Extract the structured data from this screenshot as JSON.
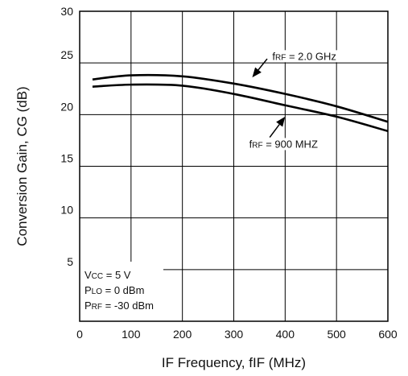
{
  "chart_data": {
    "type": "line",
    "title": "",
    "xlabel": "IF Frequency, fIF (MHz)",
    "ylabel": "Conversion Gain, CG (dB)",
    "xlim": [
      0,
      600
    ],
    "ylim": [
      0,
      30
    ],
    "xticks": [
      0,
      100,
      200,
      300,
      400,
      500,
      600
    ],
    "yticks": [
      5,
      10,
      15,
      20,
      25,
      30
    ],
    "grid": true,
    "series": [
      {
        "name": "fRF = 2.0 GHz",
        "x": [
          25,
          100,
          200,
          300,
          400,
          500,
          600
        ],
        "y": [
          23.4,
          23.8,
          23.7,
          23.0,
          22.0,
          20.8,
          19.3
        ]
      },
      {
        "name": "fRF = 900 MHZ",
        "x": [
          25,
          100,
          200,
          300,
          400,
          500,
          600
        ],
        "y": [
          22.7,
          22.9,
          22.8,
          22.0,
          20.9,
          19.8,
          18.4
        ]
      }
    ],
    "annotations": [
      {
        "base": "f",
        "sub": "RF",
        "rest": " = 2.0 GHz",
        "text_at": [
          375,
          25.3
        ],
        "arrow_from": [
          365,
          25.4
        ],
        "arrow_to": [
          336,
          23.6
        ]
      },
      {
        "base": "f",
        "sub": "RF",
        "rest": " = 900 MHZ",
        "text_at": [
          330,
          16.8
        ],
        "arrow_from": [
          370,
          17.8
        ],
        "arrow_to": [
          400,
          19.8
        ]
      }
    ],
    "conditions": [
      {
        "base": "V",
        "sub": "CC",
        "rest": " = 5 V"
      },
      {
        "base": "P",
        "sub": "LO",
        "rest": " = 0 dBm"
      },
      {
        "base": "P",
        "sub": "RF",
        "rest": " = -30 dBm"
      }
    ],
    "colors": {
      "line": "#000000",
      "grid": "#000000",
      "background": "#ffffff"
    }
  }
}
